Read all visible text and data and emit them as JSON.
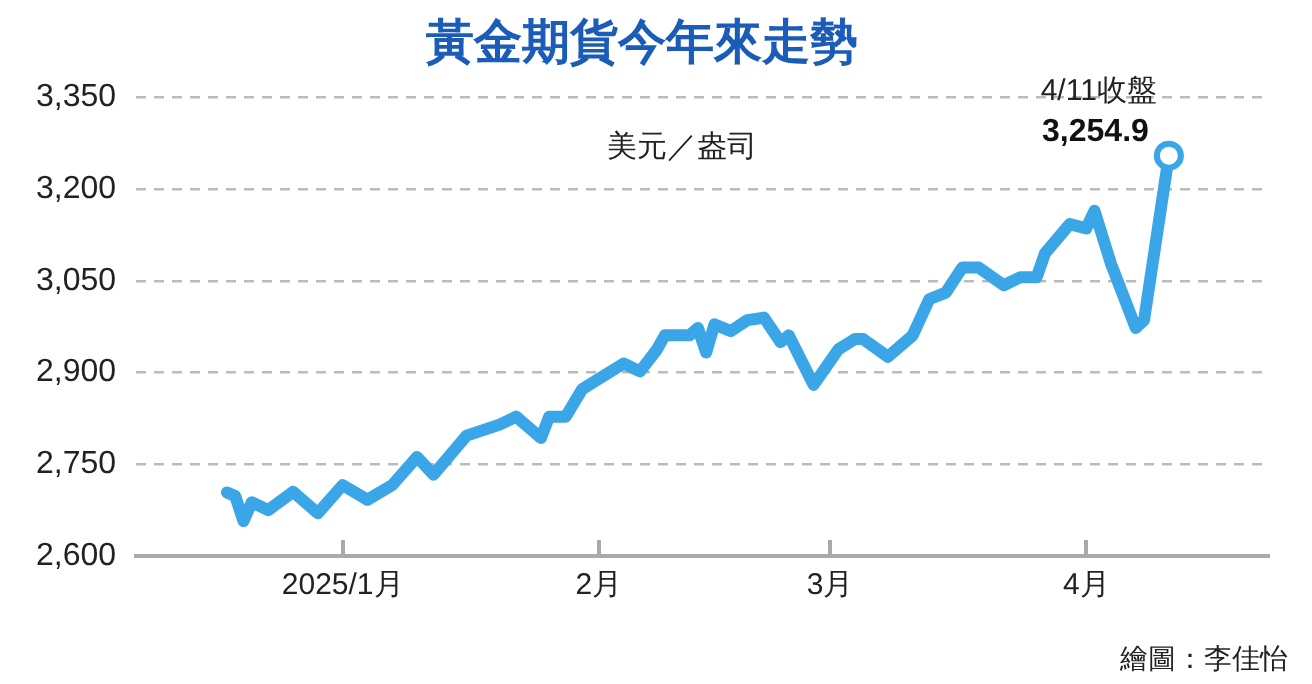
{
  "chart_data": {
    "type": "line",
    "title": "黃金期貨今年來走勢",
    "ylabel": "美元／盎司",
    "x": [
      "2024-12-18",
      "2024-12-19",
      "2024-12-20",
      "2024-12-21",
      "2024-12-23",
      "2024-12-26",
      "2024-12-29",
      "2025-01-01",
      "2025-01-04",
      "2025-01-07",
      "2025-01-10",
      "2025-01-12",
      "2025-01-16",
      "2025-01-20",
      "2025-01-22",
      "2025-01-25",
      "2025-01-26",
      "2025-01-28",
      "2025-01-30",
      "2025-02-04",
      "2025-02-06",
      "2025-02-08",
      "2025-02-09",
      "2025-02-12",
      "2025-02-13",
      "2025-02-14",
      "2025-02-15",
      "2025-02-17",
      "2025-02-19",
      "2025-02-21",
      "2025-02-23",
      "2025-02-24",
      "2025-02-27",
      "2025-03-02",
      "2025-03-04",
      "2025-03-05",
      "2025-03-08",
      "2025-03-11",
      "2025-03-13",
      "2025-03-15",
      "2025-03-17",
      "2025-03-19",
      "2025-03-22",
      "2025-03-24",
      "2025-03-26",
      "2025-03-27",
      "2025-03-30",
      "2025-04-01",
      "2025-04-02",
      "2025-04-04",
      "2025-04-07",
      "2025-04-08",
      "2025-04-11"
    ],
    "series": [
      {
        "color": "#3aa6e8",
        "values": [
          2704,
          2698,
          2657,
          2688,
          2675,
          2705,
          2670,
          2716,
          2692,
          2716,
          2762,
          2733,
          2797,
          2815,
          2828,
          2793,
          2828,
          2828,
          2873,
          2915,
          2902,
          2937,
          2961,
          2961,
          2973,
          2933,
          2979,
          2968,
          2986,
          2990,
          2950,
          2961,
          2880,
          2938,
          2955,
          2955,
          2926,
          2961,
          3020,
          3031,
          3072,
          3072,
          3043,
          3056,
          3056,
          3095,
          3143,
          3136,
          3165,
          3078,
          2973,
          2986,
          3254.9
        ],
        "value_labels": [
          null,
          null,
          null,
          null,
          null,
          null,
          null,
          null,
          null,
          null,
          null,
          null,
          null,
          null,
          null,
          null,
          null,
          null,
          null,
          null,
          null,
          null,
          null,
          null,
          null,
          null,
          null,
          null,
          null,
          null,
          null,
          null,
          null,
          null,
          null,
          null,
          null,
          null,
          null,
          null,
          null,
          null,
          null,
          null,
          null,
          null,
          null,
          null,
          null,
          null,
          null,
          null,
          "3,254.9"
        ]
      }
    ],
    "xlim": [
      "2024-12-07",
      "2025-04-23"
    ],
    "xticks": [
      {
        "value": "2025-01-01",
        "label": "2025/1月"
      },
      {
        "value": "2025-02-01",
        "label": "2月"
      },
      {
        "value": "2025-03-01",
        "label": "3月"
      },
      {
        "value": "2025-04-01",
        "label": "4月"
      }
    ],
    "ylim": [
      2600,
      3350
    ],
    "yticks": [
      {
        "value": 2600,
        "label": "2,600"
      },
      {
        "value": 2750,
        "label": "2,750"
      },
      {
        "value": 2900,
        "label": "2,900"
      },
      {
        "value": 3050,
        "label": "3,050"
      },
      {
        "value": 3200,
        "label": "3,200"
      },
      {
        "value": 3350,
        "label": "3,350"
      }
    ],
    "grid": "y",
    "legend": false,
    "marker": "none",
    "line_style": "solid",
    "annotations": [
      {
        "text": "4/11收盤",
        "x": "2025-04-11",
        "y": 3254.9
      },
      "繪圖：李佳怡"
    ]
  }
}
